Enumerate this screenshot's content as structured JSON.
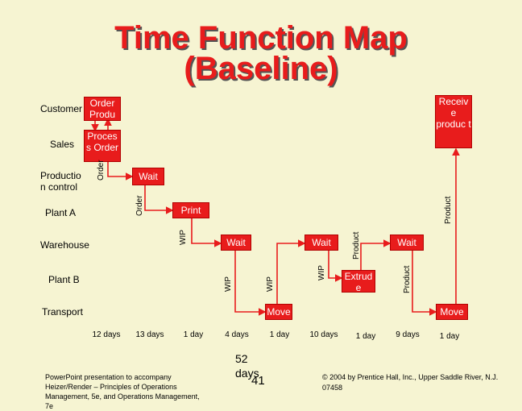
{
  "title": {
    "line1": "Time Function Map",
    "line2": "(Baseline)"
  },
  "lanes": [
    "Customer",
    "Sales",
    "Productio n control",
    "Plant A",
    "Warehouse",
    "Plant B",
    "Transport"
  ],
  "boxes": {
    "order_product": "Order Produ ct",
    "process_order": "Proces s Order",
    "wait_1": "Wait",
    "print": "Print",
    "wait_2": "Wait",
    "wait_3": "Wait",
    "wait_4": "Wait",
    "extrude": "Extrud e",
    "move_1": "Move",
    "move_2": "Move",
    "receive_product": "Receiv e produc t"
  },
  "flow_labels": {
    "order_1": "Order",
    "order_2": "Order",
    "wip_1": "WIP",
    "wip_2": "WIP",
    "wip_3": "WIP",
    "wip_4": "WIP",
    "product_1": "Product",
    "product_2": "Product",
    "product_3": "Product"
  },
  "timeline": [
    "12 days",
    "13 days",
    "1 day",
    "4 days",
    "1 day",
    "10 days",
    "1 day",
    "9 days",
    "1 day"
  ],
  "total": "52 days",
  "page_number": "41",
  "footer_left": "PowerPoint presentation to accompany Heizer/Render – Principles of Operations Management, 5e, and Operations Management, 7e",
  "footer_right": "© 2004 by Prentice Hall, Inc., Upper Saddle River, N.J. 07458",
  "colors": {
    "background": "#f6f4d2",
    "box": "#e81c1c",
    "title": "#e81c1c",
    "connector": "#e81c1c"
  }
}
